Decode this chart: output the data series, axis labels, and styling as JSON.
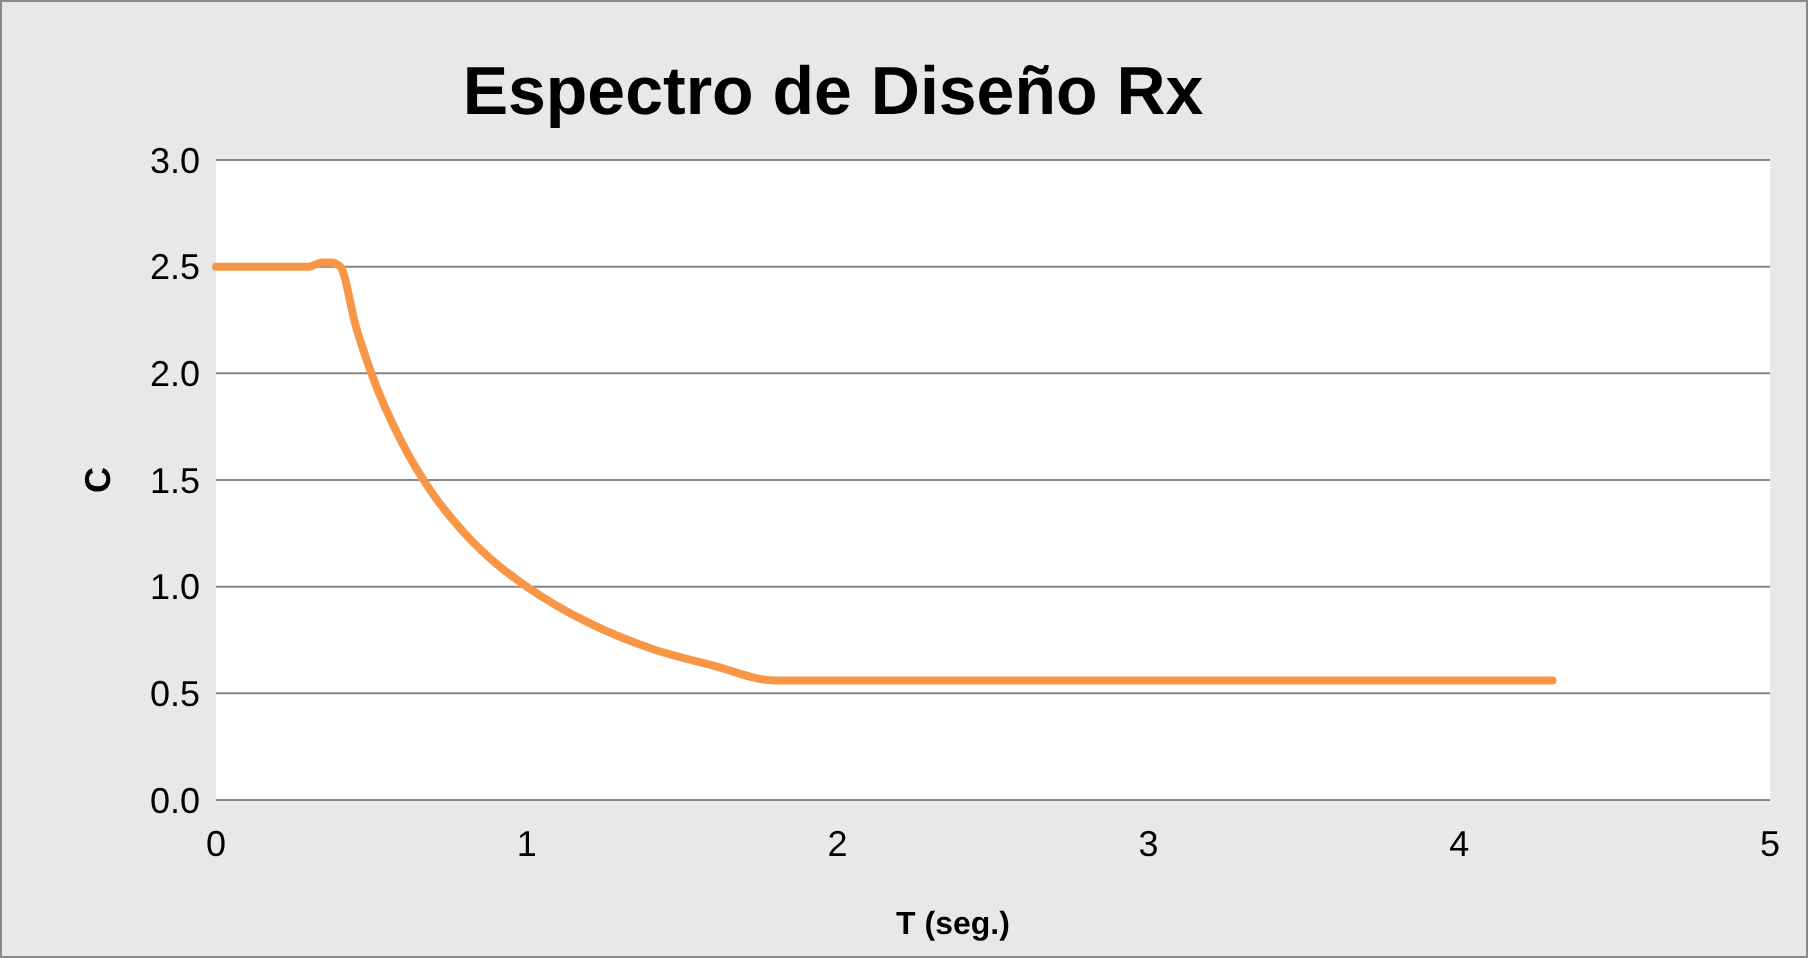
{
  "chart_data": {
    "type": "line",
    "title": "Espectro de Diseño  Rx",
    "xlabel": "T (seg.)",
    "ylabel": "C",
    "series": [
      {
        "color": "#f79646",
        "x": [
          0,
          0.3,
          0.34,
          0.37,
          0.4,
          0.45,
          0.5,
          0.6,
          0.7,
          0.8,
          0.9,
          1.0,
          1.2,
          1.4,
          1.6,
          1.8,
          1.85,
          4.3
        ],
        "values": [
          2.5,
          2.5,
          2.52,
          2.52,
          2.5,
          2.22,
          2.0,
          1.67,
          1.43,
          1.25,
          1.11,
          1.0,
          0.83,
          0.71,
          0.63,
          0.56,
          0.56,
          0.56
        ]
      }
    ],
    "xlim": [
      0,
      5
    ],
    "xticks": [
      0,
      1,
      2,
      3,
      4,
      5
    ],
    "ylim": [
      0,
      3
    ],
    "yticks": [
      {
        "value": 0,
        "label": "0.0"
      },
      {
        "value": 0.5,
        "label": "0.5"
      },
      {
        "value": 1,
        "label": "1.0"
      },
      {
        "value": 1.5,
        "label": "1.5"
      },
      {
        "value": 2,
        "label": "2.0"
      },
      {
        "value": 2.5,
        "label": "2.5"
      },
      {
        "value": 3,
        "label": "3.0"
      }
    ],
    "grid": "y",
    "marker": "none",
    "line_style": "solid"
  }
}
